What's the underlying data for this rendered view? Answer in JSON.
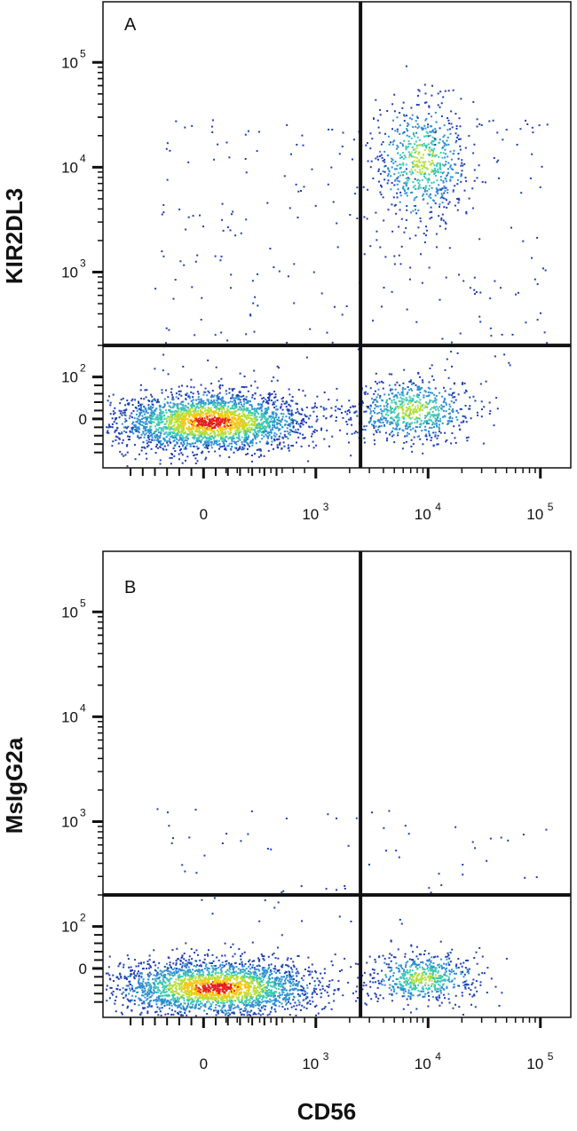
{
  "chart_data": [
    {
      "type": "scatter",
      "subtype": "flow-cytometry-density-plot",
      "panel_label": "A",
      "xlabel": "CD56",
      "ylabel": "KIR2DL3",
      "x_scale": "biexponential",
      "y_scale": "biexponential",
      "x_ticks": [
        {
          "base": "0",
          "exp": ""
        },
        {
          "base": "10",
          "exp": "3"
        },
        {
          "base": "10",
          "exp": "4"
        },
        {
          "base": "10",
          "exp": "5"
        }
      ],
      "y_ticks": [
        {
          "base": "0",
          "exp": ""
        },
        {
          "base": "10",
          "exp": "2"
        },
        {
          "base": "10",
          "exp": "3"
        },
        {
          "base": "10",
          "exp": "4"
        },
        {
          "base": "10",
          "exp": "5"
        }
      ],
      "quadrant_gate": {
        "x": 2500,
        "y": 200
      },
      "populations": [
        {
          "name": "CD56- KIR2DL3-",
          "center": {
            "x": 300,
            "y": 0
          },
          "relative_size": "large"
        },
        {
          "name": "CD56+ KIR2DL3-",
          "center": {
            "x": 9000,
            "y": 20
          },
          "relative_size": "medium"
        },
        {
          "name": "CD56+ KIR2DL3+",
          "center": {
            "x": 12000,
            "y": 5500
          },
          "relative_size": "medium"
        }
      ],
      "density_colors": [
        "#1f3fb4",
        "#2d8fd0",
        "#3cc8b4",
        "#b4e03c",
        "#f5c814",
        "#e61e1e"
      ],
      "grid": false
    },
    {
      "type": "scatter",
      "subtype": "flow-cytometry-density-plot",
      "panel_label": "B",
      "xlabel": "CD56",
      "ylabel": "MsIgG2a",
      "x_scale": "biexponential",
      "y_scale": "biexponential",
      "x_ticks": [
        {
          "base": "0",
          "exp": ""
        },
        {
          "base": "10",
          "exp": "3"
        },
        {
          "base": "10",
          "exp": "4"
        },
        {
          "base": "10",
          "exp": "5"
        }
      ],
      "y_ticks": [
        {
          "base": "0",
          "exp": ""
        },
        {
          "base": "10",
          "exp": "2"
        },
        {
          "base": "10",
          "exp": "3"
        },
        {
          "base": "10",
          "exp": "4"
        },
        {
          "base": "10",
          "exp": "5"
        }
      ],
      "quadrant_gate": {
        "x": 2500,
        "y": 200
      },
      "populations": [
        {
          "name": "CD56- isotype-",
          "center": {
            "x": 300,
            "y": 0
          },
          "relative_size": "large"
        },
        {
          "name": "CD56+ isotype-",
          "center": {
            "x": 9000,
            "y": 10
          },
          "relative_size": "medium"
        }
      ],
      "density_colors": [
        "#1f3fb4",
        "#2d8fd0",
        "#3cc8b4",
        "#b4e03c",
        "#f5c814",
        "#e61e1e"
      ],
      "grid": false
    }
  ],
  "figure": {
    "shared_xlabel": "CD56"
  }
}
